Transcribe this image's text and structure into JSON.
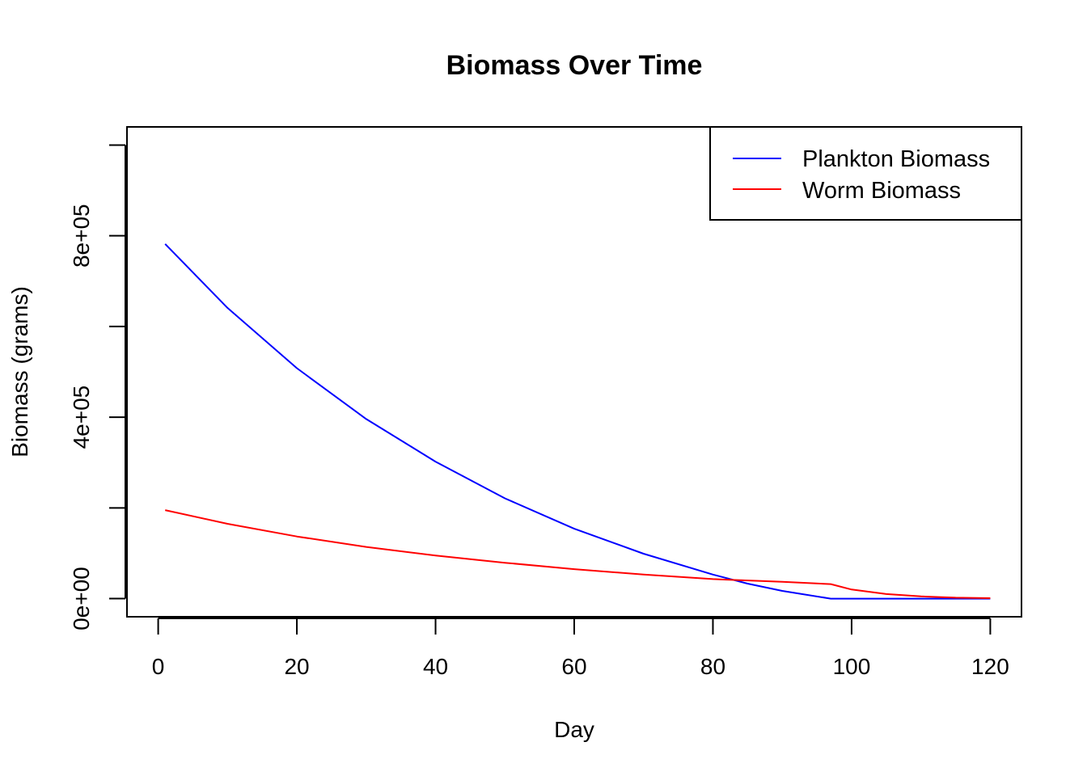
{
  "chart_data": {
    "type": "line",
    "title": "Biomass Over Time",
    "xlabel": "Day",
    "ylabel": "Biomass (grams)",
    "xlim": [
      -4.5,
      124.5
    ],
    "ylim": [
      -40000,
      1040000
    ],
    "x_ticks": [
      0,
      20,
      40,
      60,
      80,
      100,
      120
    ],
    "x_tick_labels": [
      "0",
      "20",
      "40",
      "60",
      "80",
      "100",
      "120"
    ],
    "y_ticks": [
      0,
      200000,
      400000,
      600000,
      800000,
      1000000
    ],
    "y_tick_labels": [
      "0e+00",
      "",
      "4e+05",
      "",
      "8e+05",
      ""
    ],
    "grid": false,
    "legend_position": "top-right",
    "colors": {
      "plankton": "#0000ff",
      "worm": "#ff0000"
    },
    "series": [
      {
        "name": "Plankton Biomass",
        "color": "#0000ff",
        "x": [
          1,
          10,
          20,
          30,
          40,
          50,
          60,
          70,
          80,
          85,
          90,
          97,
          100,
          110,
          120
        ],
        "y": [
          782000,
          641000,
          508000,
          396000,
          302000,
          221000,
          154000,
          99000,
          53000,
          33000,
          17000,
          0,
          0,
          0,
          0
        ]
      },
      {
        "name": "Worm Biomass",
        "color": "#ff0000",
        "x": [
          1,
          10,
          20,
          30,
          40,
          50,
          60,
          70,
          80,
          90,
          97,
          100,
          105,
          110,
          115,
          120
        ],
        "y": [
          195000,
          165000,
          137000,
          114000,
          95000,
          79000,
          65000,
          53000,
          43000,
          37000,
          32000,
          20000,
          10000,
          5000,
          2000,
          1000
        ]
      }
    ]
  }
}
